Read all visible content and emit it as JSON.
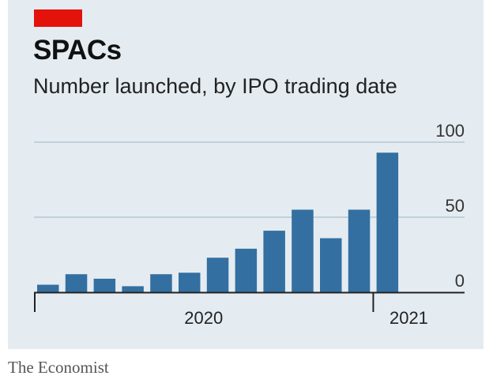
{
  "header": {
    "title": "SPACs",
    "subtitle": "Number launched, by IPO trading date"
  },
  "footer": {
    "source": "The Economist"
  },
  "colors": {
    "background": "#e4ecf2",
    "bar": "#336fa0",
    "accent": "#e3120b",
    "grid": "#b7c6d1"
  },
  "chart_data": {
    "type": "bar",
    "title": "SPACs",
    "subtitle": "Number launched, by IPO trading date",
    "xlabel": "",
    "ylabel": "",
    "ylim": [
      0,
      100
    ],
    "yticks": [
      0,
      50,
      100
    ],
    "ytick_labels": [
      "0",
      "50",
      "100"
    ],
    "grid": true,
    "legend": "none",
    "categories": [
      "2020-01",
      "2020-02",
      "2020-03",
      "2020-04",
      "2020-05",
      "2020-06",
      "2020-07",
      "2020-08",
      "2020-09",
      "2020-10",
      "2020-11",
      "2020-12",
      "2021-01"
    ],
    "values": [
      5,
      12,
      9,
      4,
      12,
      13,
      23,
      29,
      41,
      55,
      36,
      55,
      93
    ],
    "year_labels": [
      {
        "label": "2020",
        "start": 0,
        "end": 11
      },
      {
        "label": "2021",
        "start": 12,
        "end": 12
      }
    ],
    "source": "The Economist"
  }
}
